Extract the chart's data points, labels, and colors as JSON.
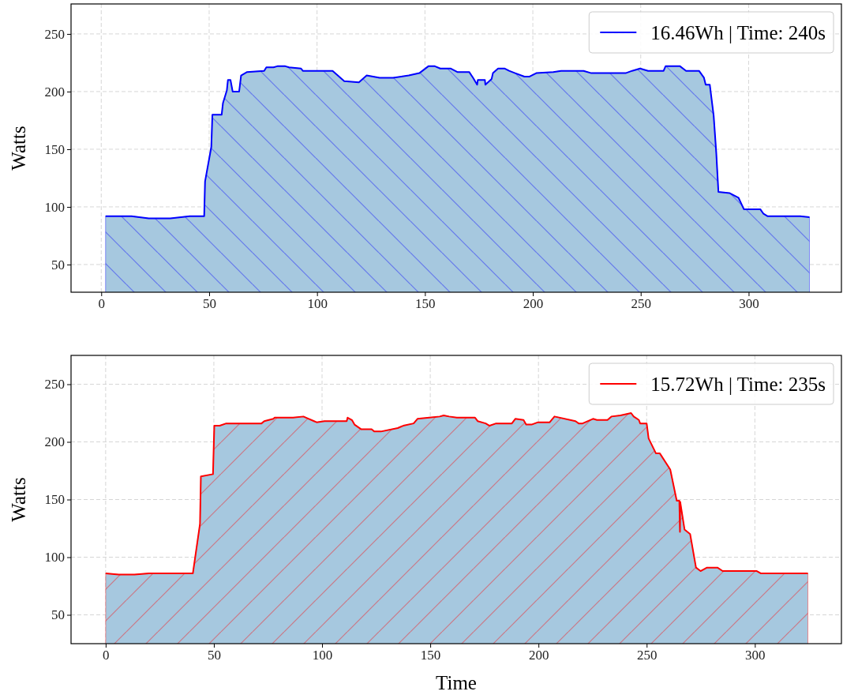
{
  "chart_data": [
    {
      "type": "area",
      "ylabel": "Watts",
      "legend": "top right",
      "grid": true,
      "xlim": [
        -14,
        343
      ],
      "ylim": [
        26,
        276
      ],
      "xticks": [
        0,
        50,
        100,
        150,
        200,
        250,
        300
      ],
      "yticks": [
        50,
        100,
        150,
        200,
        250
      ],
      "series": [
        {
          "name": "16.46Wh | Time: 240s",
          "color": "#0000ff",
          "x": [
            2,
            14,
            22,
            32,
            41,
            47.7,
            48.1,
            51,
            51.5,
            55.8,
            56.4,
            58.2,
            58.7,
            59.9,
            60.9,
            63.9,
            64.8,
            67.6,
            75.5,
            76.5,
            79.8,
            81.6,
            85.3,
            87,
            92.6,
            93.4,
            107.2,
            109.6,
            112.6,
            119.4,
            123,
            129,
            135.2,
            142.5,
            147.4,
            151.6,
            154.6,
            157.1,
            162,
            165,
            170.5,
            172.3,
            174.2,
            174.5,
            177.8,
            178,
            180.9,
            181.5,
            183.9,
            187,
            189,
            191.8,
            196.1,
            198.5,
            201.6,
            209.5,
            213.1,
            223.5,
            227.1,
            243,
            246,
            249.7,
            253.4,
            260.6,
            261.5,
            268.2,
            271,
            277,
            279.3,
            280.1,
            282,
            283.8,
            285,
            286,
            291.1,
            295.3,
            297.8,
            305.4,
            306.9,
            308.7,
            323.9,
            328.2
          ],
          "values": [
            92,
            92,
            90,
            90,
            92,
            92,
            122,
            152,
            180,
            180,
            190,
            201,
            210,
            210,
            200,
            200,
            214,
            217,
            218,
            221,
            221,
            222,
            222,
            221,
            220,
            218,
            218,
            214,
            209,
            208,
            214,
            212,
            212,
            214,
            216,
            222,
            222,
            220,
            220,
            217,
            217,
            212,
            206,
            210,
            210,
            206,
            211,
            216,
            220,
            220,
            218,
            216,
            213,
            213,
            216,
            217,
            218,
            218,
            216,
            216,
            218,
            220,
            218,
            218,
            222,
            222,
            218,
            218,
            212,
            206,
            206,
            179,
            147,
            113,
            112,
            108,
            98,
            98,
            94,
            92,
            92,
            91
          ]
        }
      ]
    },
    {
      "type": "area",
      "xlabel": "Time",
      "ylabel": "Watts",
      "legend": "top right",
      "grid": true,
      "xlim": [
        -16,
        340
      ],
      "ylim": [
        25,
        275
      ],
      "xticks": [
        0,
        50,
        100,
        150,
        200,
        250,
        300
      ],
      "yticks": [
        50,
        100,
        150,
        200,
        250
      ],
      "series": [
        {
          "name": "15.72Wh | Time: 235s",
          "color": "#ff0000",
          "x": [
            0,
            6,
            13.3,
            20,
            40.3,
            43.6,
            44,
            49.6,
            50.2,
            52.7,
            55.7,
            72,
            73.3,
            77.5,
            78.1,
            86.6,
            91.4,
            92.6,
            96.3,
            97.5,
            101.1,
            111.4,
            111.8,
            113.8,
            115,
            118,
            122.9,
            124.1,
            127.2,
            135,
            137.5,
            142.3,
            144.1,
            149.5,
            154.4,
            156.2,
            158.7,
            162.3,
            170.7,
            171.9,
            175.6,
            177.4,
            180.4,
            187.7,
            189.3,
            193.1,
            194.3,
            196.8,
            199.8,
            205.2,
            207.4,
            217.1,
            218.6,
            220.4,
            225.2,
            227,
            231.9,
            233.7,
            237.9,
            242.8,
            244,
            246.4,
            247,
            250,
            250.9,
            254.3,
            256.1,
            260.9,
            263.9,
            265.1,
            265.4,
            265.5,
            267.5,
            270.1,
            272.8,
            274.9,
            277.9,
            282.7,
            285.1,
            300.9,
            302.7,
            324.5
          ],
          "values": [
            86,
            85,
            85,
            86,
            86,
            129,
            170,
            172,
            214,
            214,
            216,
            216,
            218,
            220,
            221,
            221,
            222,
            221,
            218,
            217,
            218,
            218,
            221,
            219,
            215,
            211,
            211,
            209,
            209,
            212,
            214,
            216,
            220,
            221,
            222,
            223,
            222,
            221,
            221,
            218,
            216,
            214,
            216,
            216,
            220,
            219,
            215,
            215,
            217,
            217,
            222,
            218,
            216,
            216,
            220,
            219,
            219,
            222,
            223,
            225,
            222,
            219,
            216,
            216,
            203,
            190,
            190,
            176,
            149,
            149,
            122,
            148,
            124,
            120,
            91,
            88,
            91,
            91,
            88,
            88,
            86,
            86
          ]
        }
      ]
    }
  ]
}
